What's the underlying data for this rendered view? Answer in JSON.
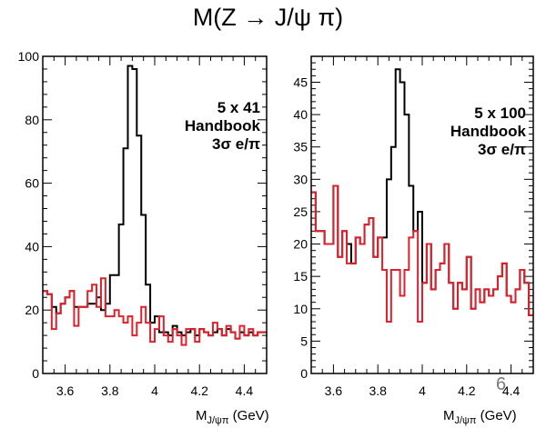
{
  "title": "M(Z → J/ψ π)",
  "page_number": "6",
  "colors": {
    "signal": "#000000",
    "background": "#e0202a"
  },
  "chart_data": [
    {
      "type": "line",
      "step": true,
      "annotation": [
        "5 x 41",
        "Handbook",
        "3σ e/π"
      ],
      "xlabel_main": "M",
      "xlabel_sub": "J/ψπ",
      "xlabel_unit": " (GeV)",
      "xlim": [
        3.5,
        4.5
      ],
      "ylim": [
        0,
        100
      ],
      "xticks": [
        {
          "v": 3.6,
          "label": "3.6"
        },
        {
          "v": 3.8,
          "label": "3.8"
        },
        {
          "v": 4.0,
          "label": "4"
        },
        {
          "v": 4.2,
          "label": "4.2"
        },
        {
          "v": 4.4,
          "label": "4.4"
        }
      ],
      "yticks": [
        {
          "v": 0,
          "label": "0"
        },
        {
          "v": 20,
          "label": "20"
        },
        {
          "v": 40,
          "label": "40"
        },
        {
          "v": 60,
          "label": "60"
        },
        {
          "v": 80,
          "label": "80"
        },
        {
          "v": 100,
          "label": "100"
        }
      ],
      "x_edges": [
        3.5,
        3.52,
        3.54,
        3.56,
        3.58,
        3.6,
        3.62,
        3.64,
        3.66,
        3.68,
        3.7,
        3.72,
        3.74,
        3.76,
        3.78,
        3.8,
        3.82,
        3.84,
        3.86,
        3.88,
        3.9,
        3.92,
        3.94,
        3.96,
        3.98,
        4.0,
        4.02,
        4.04,
        4.06,
        4.08,
        4.1,
        4.12,
        4.14,
        4.16,
        4.18,
        4.2,
        4.22,
        4.24,
        4.26,
        4.28,
        4.3,
        4.32,
        4.34,
        4.36,
        4.38,
        4.4,
        4.42,
        4.44,
        4.46,
        4.48,
        4.5
      ],
      "series": [
        {
          "color": "#000000",
          "values": [
            26,
            25,
            21,
            19,
            22,
            24,
            26,
            21,
            21,
            21,
            22,
            22,
            24,
            20,
            22,
            31,
            31,
            47,
            71,
            97,
            96,
            75,
            50,
            28,
            16,
            18,
            13,
            13,
            12,
            15,
            13,
            12,
            13,
            14,
            12,
            14,
            13,
            12,
            13,
            14,
            12,
            14,
            13,
            11,
            13,
            12,
            13,
            12,
            13,
            13
          ]
        },
        {
          "color": "#e0202a",
          "values": [
            26,
            25,
            14,
            19,
            22,
            24,
            26,
            15,
            21,
            21,
            26,
            28,
            21,
            30,
            18,
            18,
            20,
            18,
            16,
            18,
            12,
            16,
            21,
            16,
            10,
            14,
            18,
            12,
            10,
            14,
            12,
            9,
            14,
            14,
            10,
            14,
            13,
            12,
            16,
            14,
            12,
            15,
            13,
            11,
            15,
            12,
            14,
            12,
            13,
            13
          ]
        }
      ]
    },
    {
      "type": "line",
      "step": true,
      "annotation": [
        "5 x 100",
        "Handbook",
        "3σ e/π"
      ],
      "xlabel_main": "M",
      "xlabel_sub": "J/ψπ",
      "xlabel_unit": " (GeV)",
      "xlim": [
        3.5,
        4.5
      ],
      "ylim": [
        0,
        49
      ],
      "xticks": [
        {
          "v": 3.6,
          "label": "3.6"
        },
        {
          "v": 3.8,
          "label": "3.8"
        },
        {
          "v": 4.0,
          "label": "4"
        },
        {
          "v": 4.2,
          "label": "4.2"
        },
        {
          "v": 4.4,
          "label": "4.4"
        }
      ],
      "yticks": [
        {
          "v": 0,
          "label": "0"
        },
        {
          "v": 5,
          "label": "5"
        },
        {
          "v": 10,
          "label": "10"
        },
        {
          "v": 15,
          "label": "15"
        },
        {
          "v": 20,
          "label": "20"
        },
        {
          "v": 25,
          "label": "25"
        },
        {
          "v": 30,
          "label": "30"
        },
        {
          "v": 35,
          "label": "35"
        },
        {
          "v": 40,
          "label": "40"
        },
        {
          "v": 45,
          "label": "45"
        }
      ],
      "x_edges": [
        3.5,
        3.52,
        3.54,
        3.56,
        3.58,
        3.6,
        3.62,
        3.64,
        3.66,
        3.68,
        3.7,
        3.72,
        3.74,
        3.76,
        3.78,
        3.8,
        3.82,
        3.84,
        3.86,
        3.88,
        3.9,
        3.92,
        3.94,
        3.96,
        3.98,
        4.0,
        4.02,
        4.04,
        4.06,
        4.08,
        4.1,
        4.12,
        4.14,
        4.16,
        4.18,
        4.2,
        4.22,
        4.24,
        4.26,
        4.28,
        4.3,
        4.32,
        4.34,
        4.36,
        4.38,
        4.4,
        4.42,
        4.44,
        4.46,
        4.48,
        4.5
      ],
      "series": [
        {
          "color": "#000000",
          "values": [
            28,
            22,
            22,
            20,
            20,
            29,
            18,
            22,
            20,
            17,
            21,
            20,
            23,
            24,
            18,
            21,
            21,
            30,
            35,
            47,
            45,
            40,
            29,
            22,
            25,
            14,
            20,
            13,
            16,
            17,
            20,
            14,
            10,
            14,
            13,
            18,
            10,
            13,
            11,
            13,
            12,
            13,
            15,
            17,
            12,
            11,
            13,
            16,
            14,
            9
          ]
        },
        {
          "color": "#e0202a",
          "values": [
            28,
            22,
            22,
            20,
            20,
            29,
            18,
            22,
            17,
            17,
            21,
            20,
            23,
            24,
            18,
            21,
            16,
            8,
            16,
            16,
            12,
            16,
            21,
            22,
            8,
            14,
            20,
            13,
            16,
            17,
            20,
            14,
            10,
            14,
            13,
            18,
            10,
            13,
            11,
            13,
            12,
            13,
            15,
            17,
            12,
            11,
            13,
            16,
            14,
            9
          ]
        }
      ]
    }
  ]
}
